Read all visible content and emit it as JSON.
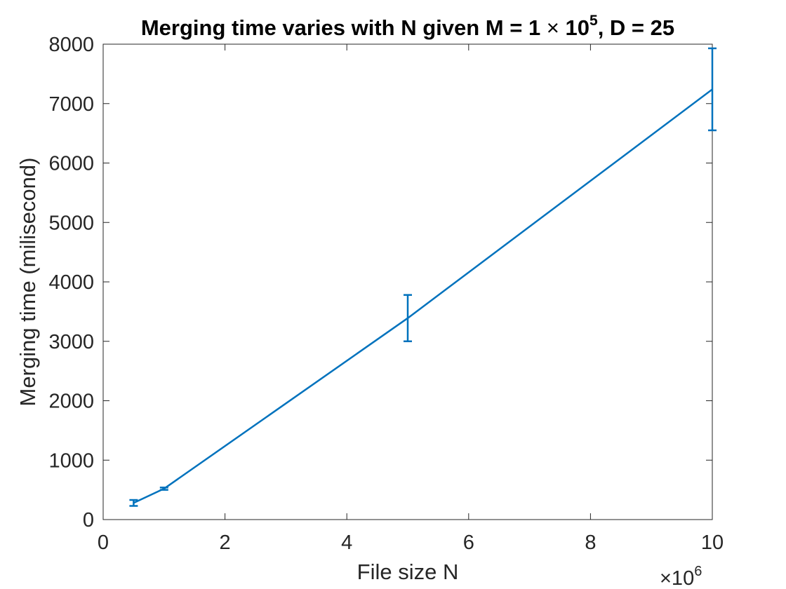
{
  "chart_data": {
    "type": "line",
    "title_main": "Merging time varies with N given M = 1 ",
    "title_times": "×",
    "title_base": " 10",
    "title_exp": "5",
    "title_tail": ", D = 25",
    "xlabel": "File size N",
    "ylabel": "Merging time (milisecond)",
    "x_multiplier_base": "×10",
    "x_multiplier_exp": "6",
    "xlim": [
      0,
      10
    ],
    "ylim": [
      0,
      8000
    ],
    "xticks": [
      0,
      2,
      4,
      6,
      8,
      10
    ],
    "yticks": [
      0,
      1000,
      2000,
      3000,
      4000,
      5000,
      6000,
      7000,
      8000
    ],
    "grid": false,
    "line_color": "#0072BD",
    "series": [
      {
        "x": [
          0.5,
          1,
          5,
          10
        ],
        "y": [
          280,
          520,
          3390,
          7240
        ],
        "err_low": [
          230,
          500,
          3000,
          6550
        ],
        "err_high": [
          330,
          540,
          3780,
          7930
        ]
      }
    ]
  }
}
